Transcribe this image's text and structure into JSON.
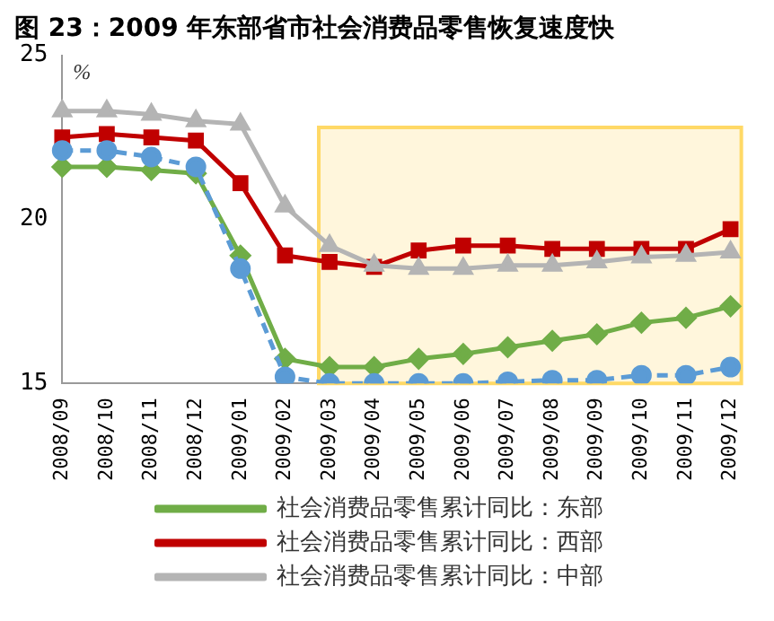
{
  "chart_data": {
    "type": "line",
    "title": "图 23：2009 年东部省市社会消费品零售恢复速度快",
    "ylabel": "%",
    "categories": [
      "2008/09",
      "2008/10",
      "2008/11",
      "2008/12",
      "2009/01",
      "2009/02",
      "2009/03",
      "2009/04",
      "2009/05",
      "2009/06",
      "2009/07",
      "2009/08",
      "2009/09",
      "2009/10",
      "2009/11",
      "2009/12"
    ],
    "series": [
      {
        "name": "社会消费品零售累计同比：东部",
        "color": "#70ad47",
        "marker": "diamond",
        "line_style": "solid",
        "values": [
          21.6,
          21.6,
          21.5,
          21.4,
          18.9,
          15.75,
          15.5,
          15.5,
          15.75,
          15.9,
          16.1,
          16.3,
          16.5,
          16.85,
          17.0,
          17.35
        ]
      },
      {
        "name": "社会消费品零售累计同比：西部",
        "color": "#c00000",
        "marker": "square",
        "line_style": "solid",
        "values": [
          22.5,
          22.6,
          22.5,
          22.4,
          21.1,
          18.9,
          18.7,
          18.55,
          19.05,
          19.2,
          19.2,
          19.1,
          19.1,
          19.1,
          19.1,
          19.7
        ]
      },
      {
        "name": "社会消费品零售累计同比：中部",
        "color": "#b4b4b4",
        "marker": "triangle",
        "line_style": "solid",
        "values": [
          23.3,
          23.3,
          23.2,
          23.0,
          22.9,
          20.4,
          19.2,
          18.6,
          18.5,
          18.5,
          18.6,
          18.6,
          18.7,
          18.85,
          18.9,
          19.0
        ]
      },
      {
        "color": "#5b9bd5",
        "marker": "circle",
        "line_style": "dashed",
        "values": [
          22.1,
          22.1,
          21.9,
          21.6,
          18.5,
          15.2,
          15.0,
          15.0,
          15.0,
          15.0,
          15.05,
          15.1,
          15.1,
          15.25,
          15.25,
          15.5
        ]
      }
    ],
    "ylim": [
      15,
      25
    ],
    "yticks": [
      15,
      20,
      25
    ],
    "grid": false,
    "legend": "bottom",
    "bands": [
      {
        "axis": "x",
        "from": "2009/03",
        "to": "2009/12",
        "color": "#fff6dc"
      }
    ]
  }
}
